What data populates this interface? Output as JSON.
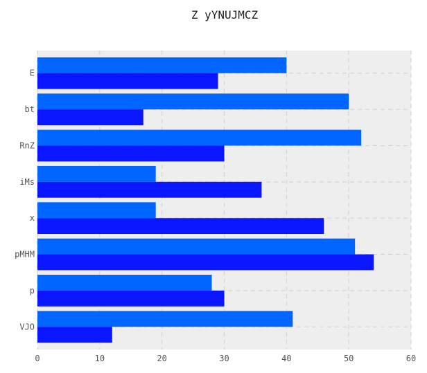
{
  "chart_data": {
    "type": "bar",
    "orientation": "horizontal",
    "title": "Z yYNUJMCZ",
    "xlabel": "",
    "ylabel": "",
    "categories": [
      "E",
      "bt",
      "RnZ",
      "iMs",
      "x",
      "pMHM",
      "p",
      "VJO"
    ],
    "series": [
      {
        "color": "#0066ff",
        "values": [
          40,
          50,
          52,
          19,
          19,
          51,
          28,
          41
        ]
      },
      {
        "color": "#0a16ff",
        "values": [
          29,
          17,
          30,
          36,
          46,
          54,
          30,
          12
        ]
      }
    ],
    "xlim": [
      0,
      60
    ],
    "xticks": [
      0,
      10,
      20,
      30,
      40,
      50,
      60
    ],
    "grid": true,
    "background": "#eeeeee"
  }
}
